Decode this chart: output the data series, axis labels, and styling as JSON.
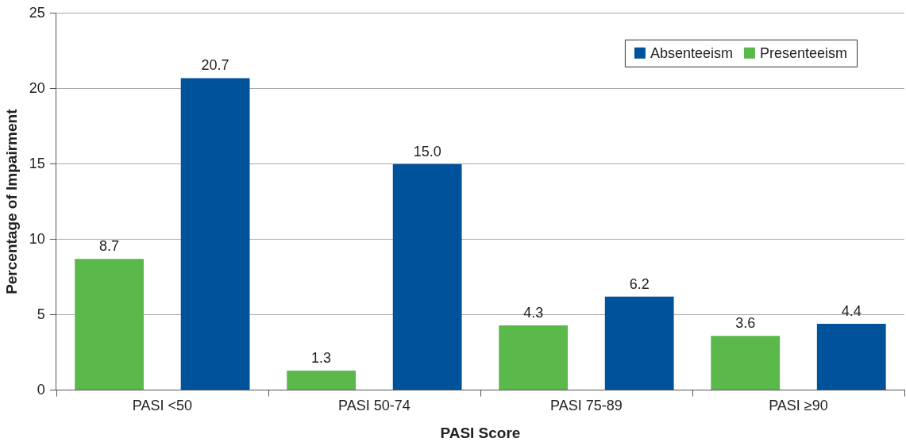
{
  "chart_data": {
    "type": "bar",
    "xlabel": "PASI Score",
    "ylabel": "Percentage of Impairment",
    "categories": [
      "PASI <50",
      "PASI 50-74",
      "PASI 75-89",
      "PASI ≥90"
    ],
    "series": [
      {
        "name": "Presenteeism",
        "color": "#5bb84a",
        "values": [
          8.7,
          1.3,
          4.3,
          3.6
        ],
        "value_labels": [
          "8.7",
          "1.3",
          "4.3",
          "3.6"
        ]
      },
      {
        "name": "Absenteeism",
        "color": "#00529b",
        "values": [
          20.7,
          15.0,
          6.2,
          4.4
        ],
        "value_labels": [
          "20.7",
          "15.0",
          "6.2",
          "4.4"
        ]
      }
    ],
    "ylim": [
      0,
      25
    ],
    "yticks": [
      0,
      5,
      10,
      15,
      20,
      25
    ],
    "grid": "y",
    "legend": "top right"
  }
}
